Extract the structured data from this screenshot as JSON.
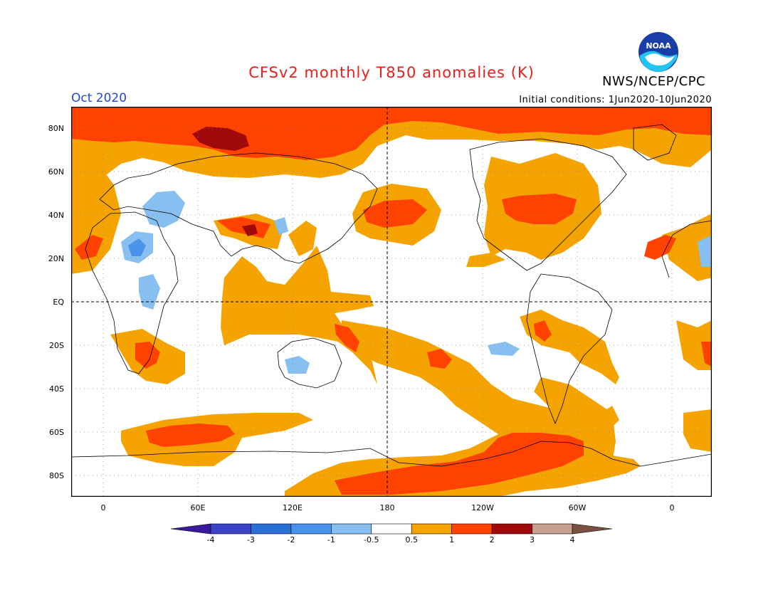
{
  "header": {
    "title": "CFSv2 monthly T850 anomalies (K)",
    "agency": "NWS/NCEP/CPC",
    "month": "Oct 2020",
    "initial_conditions": "Initial conditions: 1Jun2020-10Jun2020",
    "logo_text": "NOAA"
  },
  "map": {
    "lat_labels": [
      "80N",
      "60N",
      "40N",
      "20N",
      "EQ",
      "20S",
      "40S",
      "60S",
      "80S"
    ],
    "lon_labels": [
      "0",
      "60E",
      "120E",
      "180",
      "120W",
      "60W",
      "0"
    ],
    "reference_lines": [
      "Equator",
      "180 meridian"
    ]
  },
  "colorbar": {
    "labels": [
      "-4",
      "-3",
      "-2",
      "-1",
      "-0.5",
      "0.5",
      "1",
      "2",
      "3",
      "4"
    ],
    "colors": [
      "#3a1a9c",
      "#3b44c8",
      "#2a6fd6",
      "#4a93ea",
      "#86bff0",
      "#ffffff",
      "#f5a300",
      "#ff4200",
      "#a00a0a",
      "#c8a090",
      "#7a5040"
    ]
  }
}
